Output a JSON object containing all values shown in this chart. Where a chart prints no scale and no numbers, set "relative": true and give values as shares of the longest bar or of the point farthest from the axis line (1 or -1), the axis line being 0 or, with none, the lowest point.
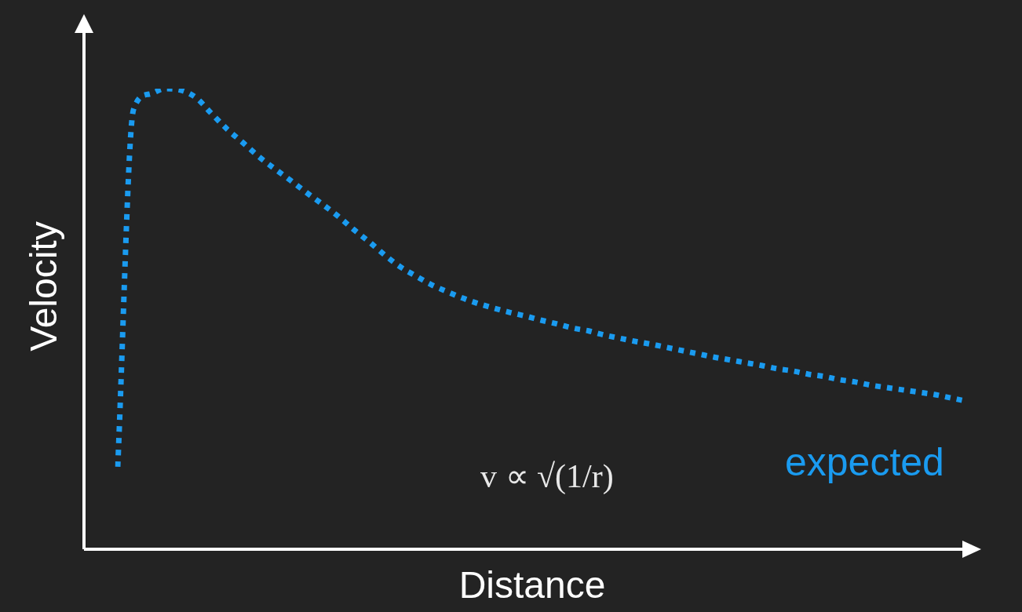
{
  "chart_data": {
    "type": "line",
    "relative": true,
    "xlabel": "Distance",
    "ylabel": "Velocity",
    "categories": [
      null,
      null,
      null,
      null,
      null,
      null,
      null,
      null,
      null,
      null,
      null,
      null,
      null,
      null,
      null,
      null,
      null,
      null,
      null,
      null,
      null,
      null,
      null,
      null,
      null,
      null,
      null,
      null,
      null,
      null,
      null,
      null,
      null,
      null,
      null,
      null,
      null,
      null,
      null,
      null,
      null,
      null,
      null,
      null,
      null,
      null,
      null,
      null,
      null,
      null,
      null,
      null,
      null,
      null,
      null
    ],
    "series": [
      {
        "name": "expected",
        "color": "#1a9bf0",
        "values": [
          0.179,
          0.954,
          0.988,
          1,
          0.997,
          0.98,
          0.945,
          0.911,
          0.882,
          0.852,
          0.826,
          0.801,
          0.775,
          0.75,
          0.724,
          0.695,
          0.668,
          0.639,
          0.613,
          0.593,
          0.574,
          0.559,
          0.545,
          0.533,
          0.523,
          0.514,
          0.506,
          0.497,
          0.489,
          0.48,
          0.474,
          0.465,
          0.458,
          0.451,
          0.445,
          0.438,
          0.431,
          0.424,
          0.417,
          0.411,
          0.405,
          0.399,
          0.392,
          0.387,
          0.38,
          0.375,
          0.368,
          0.363,
          0.356,
          0.351,
          0.346,
          0.341,
          0.336,
          0.329,
          0.322
        ]
      }
    ],
    "annotations": [
      "v ∝ √(1/r)"
    ],
    "line_style": "dotted",
    "marker": "none"
  }
}
